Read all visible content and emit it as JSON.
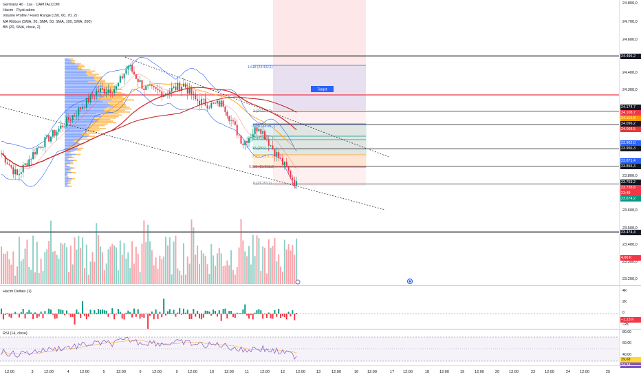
{
  "legend": {
    "symbol": "Germany 40 · 1sa · CAPITALCOM",
    "lines": [
      "Hacim · Fiyat adımı",
      "Volume Profile / Fixed Range (150, 60, 70, 2)",
      "MA Ribbon (SMA, 20, SMA, 50, SMA, 100, SMA, 200)",
      "BB (20, SMA, close, 2)"
    ]
  },
  "price_scale": {
    "labels": [
      "24.800,0",
      "24.700,0",
      "24.600,0",
      "24.400,0",
      "24.300,0",
      "23.800,0",
      "23.600,0",
      "23.500,0",
      "23.400,0",
      "23.300,0",
      "23.200,0"
    ],
    "tags": [
      {
        "text": "24.495,2",
        "color": "#131722"
      },
      {
        "text": "24.174,7",
        "color": "#131722"
      },
      {
        "text": "24.108,7",
        "color": "#f23645"
      },
      {
        "text": "24.101,8",
        "color": "#ff9800"
      },
      {
        "text": "24.096,2",
        "color": "#131722"
      },
      {
        "text": "24.068,5",
        "color": "#e53935"
      },
      {
        "text": "23.962,0",
        "color": "#2962ff"
      },
      {
        "text": "23.956,3",
        "color": "#131722"
      },
      {
        "text": "23.871,4",
        "color": "#2962ff"
      },
      {
        "text": "23.855,3",
        "color": "#131722"
      },
      {
        "text": "23.753,2",
        "color": "#131722"
      },
      {
        "text": "23.738,8",
        "color": "#f23645"
      },
      {
        "text": "23:48",
        "color": "#f23645"
      },
      {
        "text": "23.674,2",
        "color": "#089981"
      },
      {
        "text": "23.474,4",
        "color": "#131722"
      },
      {
        "text": "4,66 K",
        "color": "#f23645"
      }
    ]
  },
  "fib_labels": [
    "1.618 (24.432,1)",
    "1 (24.174,7)",
    "0.786 (24.09...)",
    "0.618 (24.0...)",
    "0.5 (23.9...)",
    "0.382 (23.9...)",
    "0.236 (23.852,2)",
    "0 (23.753,2)"
  ],
  "trade_box_label": "Target",
  "delta_pane": {
    "title": "Hacim Deltası (1)",
    "scale": [
      "4K",
      "2K",
      "0",
      "−2K"
    ],
    "value_tag": "−1,13 K"
  },
  "rsi_pane": {
    "title": "RSI (14, close)",
    "scale": [
      "80,00",
      "60,00",
      "40,00"
    ],
    "value_tags": [
      "29,68",
      "24,34"
    ]
  },
  "time_axis": [
    "12:00",
    "3",
    "12:00",
    "4",
    "12:00",
    "5",
    "12:00",
    "6",
    "12:00",
    "9",
    "12:00",
    "10",
    "12:00",
    "11",
    "12:00",
    "12",
    "12:00",
    "13",
    "12:00",
    "16",
    "12:00",
    "17",
    "12:00",
    "18",
    "12:00",
    "19",
    "12:00",
    "20",
    "12:00",
    "23",
    "12:00",
    "24",
    "12:00",
    "25"
  ],
  "colors": {
    "up": "#089981",
    "down": "#f23645",
    "fib_blue": "#2962ff",
    "fib_red": "#f23645",
    "fib_teal": "#089981",
    "fib_orange": "#ff9800",
    "ma_red": "#d32f2f",
    "ma_orange": "#ff9800",
    "bb": "#2962ff"
  },
  "chart_data": {
    "type": "candlestick",
    "price_range": [
      23200,
      24800
    ],
    "horizontal_levels": [
      24495.2,
      24174.7,
      24096.2,
      23956.3,
      23855.3,
      23753.2,
      23474.4
    ],
    "last_price": 23738.8
  }
}
